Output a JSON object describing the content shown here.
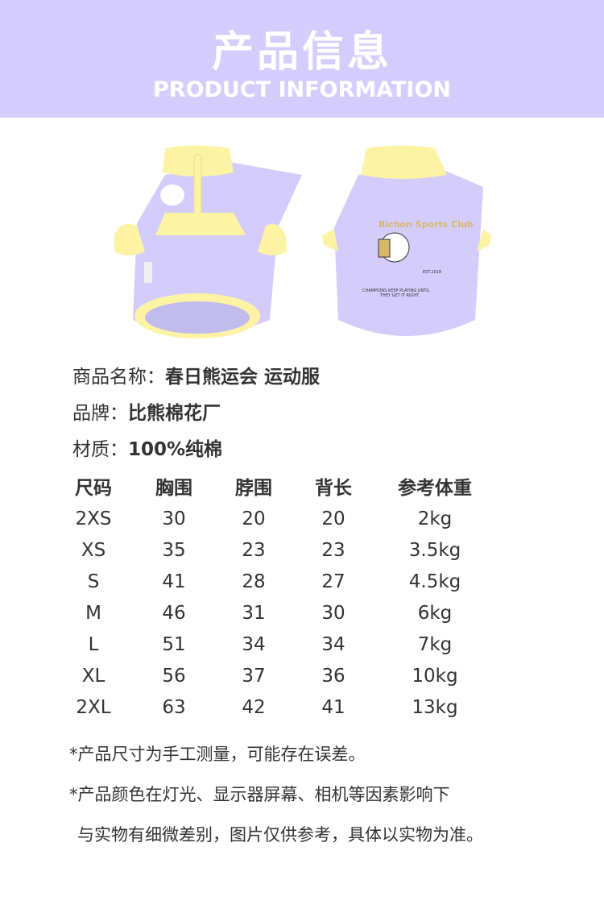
{
  "header": {
    "title": "产品信息",
    "subtitle": "PRODUCT INFORMATION"
  },
  "colors": {
    "header_bg": "#d5cdfd",
    "shirt_body": "#d4cdfc",
    "shirt_trim": "#fdf3a4"
  },
  "product_image": {
    "print_text": [
      "Bichon Sports Club",
      "EST.2018",
      "CHAMPIONS KEEP PLAYING UNTIL",
      "THEY GET IT RIGHT."
    ]
  },
  "info": [
    {
      "label": "商品名称：",
      "value": "春日熊运会 运动服"
    },
    {
      "label": "品牌：",
      "value": "比熊棉花厂"
    },
    {
      "label": "材质：",
      "value": "100%纯棉"
    }
  ],
  "size_table": {
    "headers": [
      "尺码",
      "胸围",
      "脖围",
      "背长",
      "参考体重"
    ],
    "rows": [
      [
        "2XS",
        "30",
        "20",
        "20",
        "2kg"
      ],
      [
        "XS",
        "35",
        "23",
        "23",
        "3.5kg"
      ],
      [
        "S",
        "41",
        "28",
        "27",
        "4.5kg"
      ],
      [
        "M",
        "46",
        "31",
        "30",
        "6kg"
      ],
      [
        "L",
        "51",
        "34",
        "34",
        "7kg"
      ],
      [
        "XL",
        "56",
        "37",
        "36",
        "10kg"
      ],
      [
        "2XL",
        "63",
        "42",
        "41",
        "13kg"
      ]
    ]
  },
  "notes": [
    "*产品尺寸为手工测量，可能存在误差。",
    "*产品颜色在灯光、显示器屏幕、相机等因素影响下",
    "与实物有细微差别，图片仅供参考，具体以实物为准。"
  ]
}
